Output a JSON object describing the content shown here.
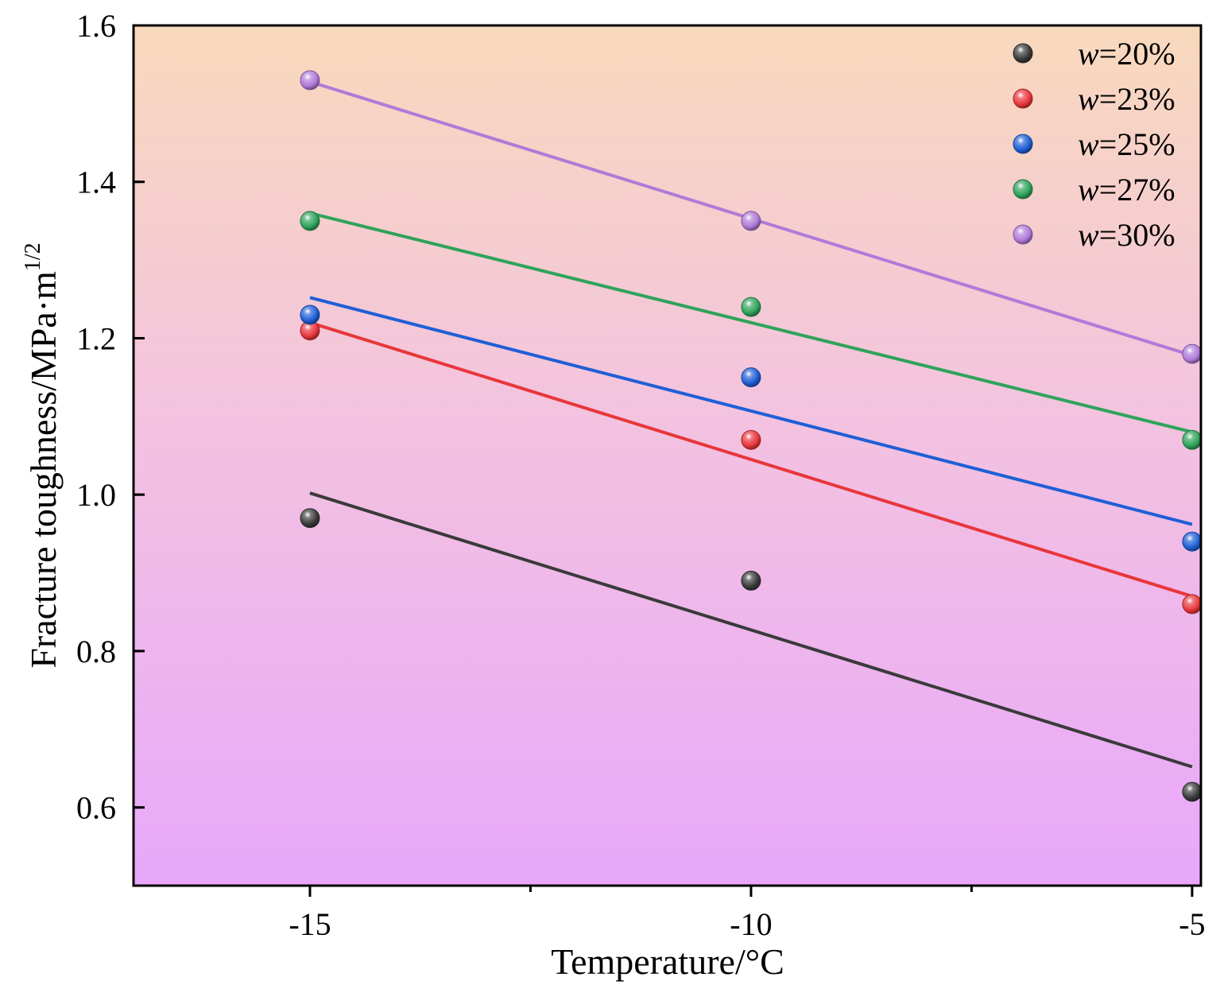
{
  "chart_data": {
    "type": "scatter",
    "xlabel": "Temperature/°C",
    "ylabel": "Fracture toughness/MPa·m",
    "ylabel_sup": "1/2",
    "xlim": [
      -17,
      -4.9
    ],
    "ylim": [
      0.5,
      1.6
    ],
    "x_ticks": [
      -15,
      -10,
      -5
    ],
    "x_tick_labels": [
      "-15",
      "-10",
      "-5"
    ],
    "y_ticks": [
      0.6,
      0.8,
      1.0,
      1.2,
      1.4,
      1.6
    ],
    "y_tick_labels": [
      "0.6",
      "0.8",
      "1.0",
      "1.2",
      "1.4",
      "1.6"
    ],
    "legend_position": "top-right",
    "background": "vertical gradient from peach (top) to violet (bottom)",
    "x": [
      -15,
      -10,
      -5
    ],
    "series": [
      {
        "name_var": "w",
        "name_rest": "=20%",
        "color": "#3a3a3a",
        "values": [
          0.97,
          0.89,
          0.62
        ],
        "fit": [
          1.002,
          0.652
        ]
      },
      {
        "name_var": "w",
        "name_rest": "=23%",
        "color": "#e8363b",
        "values": [
          1.21,
          1.07,
          0.86
        ],
        "fit": [
          1.22,
          0.87
        ]
      },
      {
        "name_var": "w",
        "name_rest": "=25%",
        "color": "#1f5fd6",
        "values": [
          1.23,
          1.15,
          0.94
        ],
        "fit": [
          1.252,
          0.962
        ]
      },
      {
        "name_var": "w",
        "name_rest": "=27%",
        "color": "#2fa35a",
        "values": [
          1.35,
          1.24,
          1.07
        ],
        "fit": [
          1.36,
          1.08
        ]
      },
      {
        "name_var": "w",
        "name_rest": "=30%",
        "color": "#b07ad8",
        "values": [
          1.53,
          1.35,
          1.18
        ],
        "fit": [
          1.528,
          1.178
        ]
      }
    ]
  }
}
